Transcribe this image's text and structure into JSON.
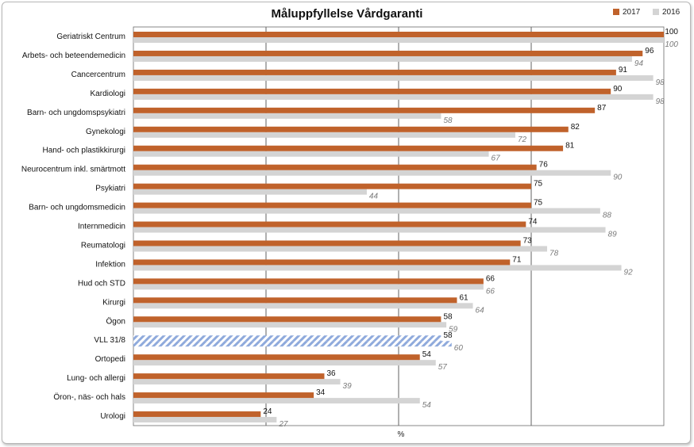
{
  "chart_data": {
    "type": "bar",
    "orientation": "horizontal",
    "title": "Måluppfyllelse Vårdgaranti",
    "xlabel": "%",
    "ylabel": "",
    "xlim": [
      0,
      100
    ],
    "legend_position": "top-right",
    "categories": [
      "Geriatriskt Centrum",
      "Arbets- och beteendemedicin",
      "Cancercentrum",
      "Kardiologi",
      "Barn- och ungdomspsykiatri",
      "Gynekologi",
      "Hand- och plastikkirurgi",
      "Neurocentrum inkl. smärtmott",
      "Psykiatri",
      "Barn- och ungdomsmedicin",
      "Internmedicin",
      "Reumatologi",
      "Infektion",
      "Hud och STD",
      "Kirurgi",
      "Ögon",
      "VLL 31/8",
      "Ortopedi",
      "Lung- och allergi",
      "Öron-, näs- och hals",
      "Urologi"
    ],
    "series": [
      {
        "name": "2017",
        "color": "#c0622b",
        "values": [
          100,
          96,
          91,
          90,
          87,
          82,
          81,
          76,
          75,
          75,
          74,
          73,
          71,
          66,
          61,
          58,
          58,
          54,
          36,
          34,
          24
        ]
      },
      {
        "name": "2016",
        "color": "#d4d4d4",
        "values": [
          100,
          94,
          98,
          98,
          58,
          72,
          67,
          90,
          44,
          88,
          89,
          78,
          92,
          66,
          64,
          59,
          60,
          57,
          39,
          54,
          27
        ]
      }
    ],
    "highlight_category": "VLL 31/8"
  }
}
